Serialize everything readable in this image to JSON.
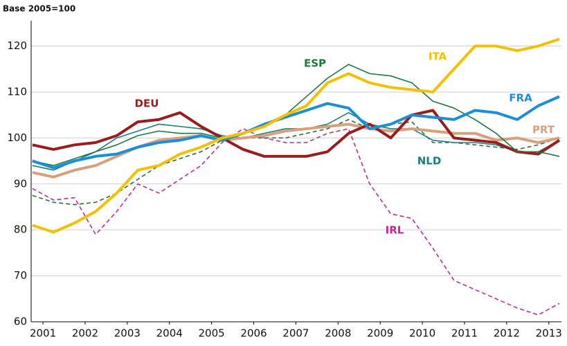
{
  "chart_data": {
    "type": "line",
    "subtitle": "Base 2005=100",
    "x": [
      2000.75,
      2001.25,
      2001.75,
      2002.25,
      2002.75,
      2003.25,
      2003.75,
      2004.25,
      2004.75,
      2005.25,
      2005.75,
      2006.25,
      2006.75,
      2007.25,
      2007.75,
      2008.25,
      2008.75,
      2009.25,
      2009.75,
      2010.25,
      2010.75,
      2011.25,
      2011.75,
      2012.25,
      2012.75,
      2013.25
    ],
    "xlim": [
      2000.72,
      2013.3
    ],
    "xticks": [
      2001,
      2002,
      2003,
      2004,
      2005,
      2006,
      2007,
      2008,
      2009,
      2010,
      2011,
      2012,
      2013
    ],
    "ylim": [
      60,
      125.5
    ],
    "yticks": [
      60,
      70,
      80,
      90,
      100,
      110,
      120
    ],
    "grid": true,
    "series": [
      {
        "color": "#2f6b3a",
        "dashed": true,
        "values": [
          87.5,
          86,
          85.5,
          86,
          88,
          91,
          94,
          95.5,
          97,
          99.5,
          100,
          100,
          100,
          101,
          102,
          104,
          102,
          103,
          103.5,
          99,
          99,
          98.5,
          98,
          97.5,
          98.5,
          100
        ]
      },
      {
        "name": "IRL",
        "color": "#c0288f",
        "dashed": true,
        "values": [
          89,
          86.5,
          87,
          79,
          84,
          90,
          88,
          91,
          94,
          99,
          102,
          100,
          99,
          99,
          101,
          102,
          90,
          83.5,
          82.5,
          76,
          69,
          67,
          65,
          63,
          61.5,
          64
        ]
      },
      {
        "name": "NLD",
        "color": "#168080",
        "values": [
          94,
          93,
          95,
          97,
          100,
          101.5,
          103,
          102.5,
          102,
          100.5,
          100,
          101,
          102,
          102,
          103,
          105.5,
          103,
          102,
          102,
          99.5,
          99,
          99,
          98.5,
          97,
          97,
          99.5
        ]
      },
      {
        "name": "PRT",
        "color": "#d8a07a",
        "thick": true,
        "values": [
          92.5,
          91.5,
          93,
          94,
          96,
          98,
          99.5,
          100,
          100.5,
          99.5,
          100,
          100.5,
          101.5,
          102,
          102.5,
          103,
          102,
          101.5,
          102,
          101.5,
          101,
          101,
          99.5,
          100,
          99,
          100
        ]
      },
      {
        "name": "DEU",
        "color": "#9b1c1c",
        "thick": true,
        "values": [
          98.5,
          97.5,
          98.5,
          99,
          100.5,
          103.5,
          104,
          105.5,
          102.5,
          100,
          97.5,
          96,
          96,
          96,
          97,
          101,
          103,
          100,
          105,
          106,
          100,
          99.5,
          99,
          97,
          96.5,
          99.5
        ]
      },
      {
        "name": "ESP",
        "color": "#1a7a3a",
        "values": [
          95,
          94,
          95.5,
          97,
          98.5,
          100.5,
          101.5,
          101,
          101,
          100,
          101,
          103,
          105,
          109,
          113,
          116,
          114,
          113.5,
          112,
          108,
          106.5,
          104,
          101,
          97,
          97,
          96
        ]
      },
      {
        "name": "FRA",
        "color": "#1b8fd6",
        "thick": true,
        "values": [
          95,
          93.5,
          95,
          96,
          96.5,
          98,
          99,
          99.5,
          100.5,
          99.5,
          101,
          103,
          104.5,
          106,
          107.5,
          106.5,
          102,
          103,
          105,
          104.5,
          104,
          106,
          105.5,
          104,
          107,
          109
        ]
      },
      {
        "name": "ITA",
        "color": "#f5c000",
        "thick": true,
        "values": [
          81,
          79.5,
          81.5,
          84,
          88,
          93,
          94,
          96.5,
          98,
          100,
          101,
          102.5,
          105,
          107,
          112,
          114,
          112,
          111,
          110.5,
          110,
          115,
          120,
          120,
          119,
          120,
          121.5
        ]
      }
    ]
  }
}
